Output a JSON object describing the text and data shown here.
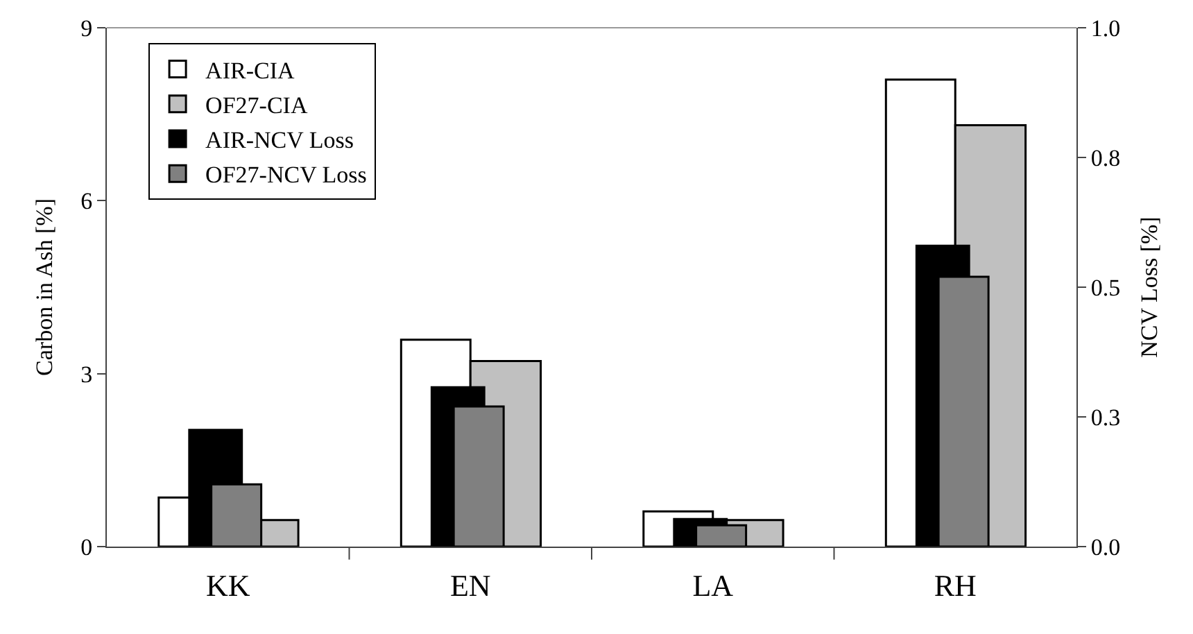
{
  "chart_data": {
    "type": "bar",
    "ylabel": "Carbon in Ash [%]",
    "y2label": "NCV Loss [%]",
    "categories": [
      "KK",
      "EN",
      "LA",
      "RH"
    ],
    "series": [
      {
        "name": "AIR-CIA",
        "color": "#ffffff",
        "values": [
          0.85,
          3.59,
          0.61,
          8.1
        ]
      },
      {
        "name": "OF27-CIA",
        "color": "#c0c0c0",
        "values": [
          0.46,
          3.22,
          0.46,
          7.31
        ]
      },
      {
        "name": "AIR-NCV Loss",
        "color": "#000000",
        "axis": "y2",
        "values": [
          0.225,
          0.307,
          0.053,
          0.58
        ]
      },
      {
        "name": "OF27-NCV Loss",
        "color": "#808080",
        "axis": "y2",
        "values": [
          0.12,
          0.27,
          0.041,
          0.52
        ]
      }
    ],
    "ylim": [
      0,
      9
    ],
    "yticks": [
      0,
      3,
      6,
      9
    ],
    "y2lim": [
      0,
      1
    ],
    "y2ticks": [
      {
        "value": 0,
        "label": "0.0"
      },
      {
        "value": 0.25,
        "label": "0.3"
      },
      {
        "value": 0.5,
        "label": "0.5"
      },
      {
        "value": 0.75,
        "label": "0.8"
      },
      {
        "value": 1,
        "label": "1.0"
      }
    ],
    "legend": "top left"
  }
}
